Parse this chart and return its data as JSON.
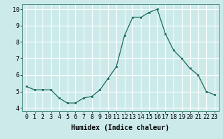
{
  "x": [
    0,
    1,
    2,
    3,
    4,
    5,
    6,
    7,
    8,
    9,
    10,
    11,
    12,
    13,
    14,
    15,
    16,
    17,
    18,
    19,
    20,
    21,
    22,
    23
  ],
  "y": [
    5.3,
    5.1,
    5.1,
    5.1,
    4.6,
    4.3,
    4.3,
    4.6,
    4.7,
    5.1,
    5.8,
    6.5,
    8.4,
    9.5,
    9.5,
    9.8,
    10.0,
    8.5,
    7.5,
    7.0,
    6.4,
    6.0,
    5.0,
    4.8
  ],
  "xlabel": "Humidex (Indice chaleur)",
  "ylim": [
    3.8,
    10.3
  ],
  "xlim": [
    -0.5,
    23.5
  ],
  "yticks": [
    4,
    5,
    6,
    7,
    8,
    9,
    10
  ],
  "xticks": [
    0,
    1,
    2,
    3,
    4,
    5,
    6,
    7,
    8,
    9,
    10,
    11,
    12,
    13,
    14,
    15,
    16,
    17,
    18,
    19,
    20,
    21,
    22,
    23
  ],
  "line_color": "#1a6b5a",
  "marker": "s",
  "marker_size": 2.0,
  "bg_color": "#cceaea",
  "grid_color": "#ffffff",
  "tick_fontsize": 6,
  "label_fontsize": 7
}
